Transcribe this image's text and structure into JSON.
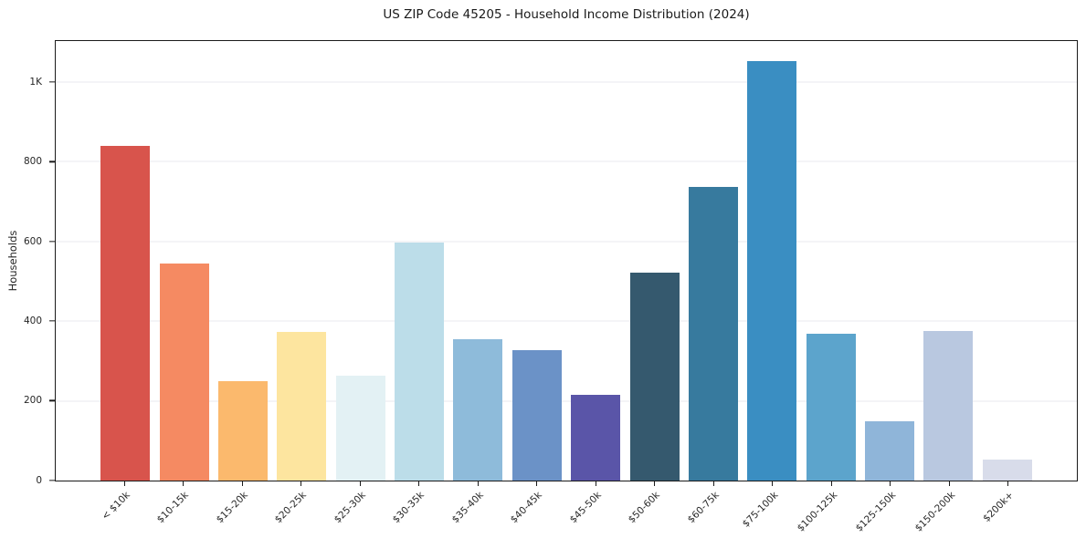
{
  "chart_data": {
    "type": "bar",
    "title": "US ZIP Code 45205 - Household Income Distribution (2024)",
    "xlabel": "",
    "ylabel": "Households",
    "categories": [
      "< $10k",
      "$10-15k",
      "$15-20k",
      "$20-25k",
      "$25-30k",
      "$30-35k",
      "$35-40k",
      "$40-45k",
      "$45-50k",
      "$50-60k",
      "$60-75k",
      "$75-100k",
      "$100-125k",
      "$125-150k",
      "$150-200k",
      "$200k+"
    ],
    "values": [
      840,
      545,
      250,
      372,
      264,
      596,
      355,
      326,
      214,
      522,
      736,
      1052,
      367,
      148,
      376,
      52
    ],
    "bar_colors": [
      "#d8544c",
      "#f58a62",
      "#fbb96d",
      "#fde59f",
      "#e3f1f4",
      "#bcdde9",
      "#8ebbda",
      "#6b92c7",
      "#5a55a8",
      "#35596e",
      "#377a9e",
      "#3a8ec2",
      "#5ca4cc",
      "#8fb5d9",
      "#b9c8e0",
      "#d8dcea"
    ],
    "ylim": [
      0,
      1102
    ],
    "yticks": [
      {
        "label": "0",
        "value": 0
      },
      {
        "label": "200",
        "value": 200
      },
      {
        "label": "400",
        "value": 400
      },
      {
        "label": "600",
        "value": 600
      },
      {
        "label": "800",
        "value": 800
      },
      {
        "label": "1K",
        "value": 1000
      }
    ],
    "grid": "horizontal",
    "legend": "none"
  },
  "colors": {
    "grid_line": "#e9eaef",
    "spine": "#1a1a1a",
    "background": "#ffffff",
    "text": "#262626"
  }
}
